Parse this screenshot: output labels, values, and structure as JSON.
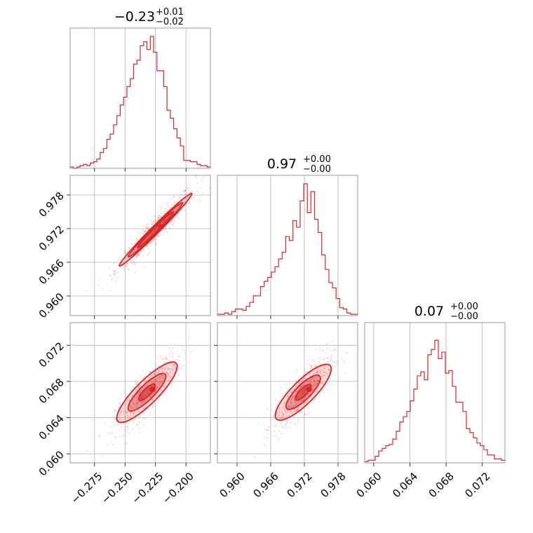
{
  "chart_data": {
    "type": "corner",
    "color": "#d62728",
    "grid": true,
    "parameters": [
      {
        "title_main": "−0.23",
        "title_sup": "+0.01",
        "title_sub": "−0.02",
        "range": [
          -0.295,
          -0.18
        ],
        "ticks": [
          -0.275,
          -0.25,
          -0.225,
          -0.2
        ],
        "tick_labels": [
          "−0.275",
          "−0.250",
          "−0.225",
          "−0.200"
        ]
      },
      {
        "title_main": "0.97",
        "title_sup": "+0.00",
        "title_sub": "−0.00",
        "range": [
          0.9565,
          0.9815
        ],
        "ticks": [
          0.96,
          0.966,
          0.972,
          0.978
        ],
        "tick_labels": [
          "0.960",
          "0.966",
          "0.972",
          "0.978"
        ]
      },
      {
        "title_main": "0.07",
        "title_sup": "+0.00",
        "title_sub": "−0.00",
        "range": [
          0.059,
          0.0745
        ],
        "ticks": [
          0.06,
          0.064,
          0.068,
          0.072
        ],
        "tick_labels": [
          "0.060",
          "0.064",
          "0.068",
          "0.072"
        ]
      }
    ],
    "histograms": [
      [
        0.01,
        0.0,
        0.01,
        0.02,
        0.03,
        0.02,
        0.04,
        0.05,
        0.07,
        0.12,
        0.15,
        0.22,
        0.26,
        0.33,
        0.4,
        0.48,
        0.54,
        0.62,
        0.68,
        0.79,
        0.82,
        0.93,
        0.96,
        0.9,
        1.0,
        0.88,
        0.74,
        0.74,
        0.62,
        0.44,
        0.38,
        0.3,
        0.23,
        0.17,
        0.06,
        0.06,
        0.05,
        0.05,
        0.03,
        0.02,
        0.02,
        0.01
      ],
      [
        0.01,
        0.01,
        0.02,
        0.01,
        0.03,
        0.05,
        0.05,
        0.04,
        0.07,
        0.1,
        0.15,
        0.15,
        0.22,
        0.26,
        0.29,
        0.33,
        0.37,
        0.43,
        0.48,
        0.6,
        0.57,
        0.72,
        0.67,
        0.87,
        1.0,
        0.78,
        0.94,
        0.73,
        0.63,
        0.46,
        0.35,
        0.25,
        0.21,
        0.13,
        0.06,
        0.05,
        0.02,
        0.01,
        0.01
      ],
      [
        0.01,
        0.02,
        0.02,
        0.05,
        0.09,
        0.11,
        0.13,
        0.14,
        0.18,
        0.24,
        0.31,
        0.35,
        0.39,
        0.47,
        0.56,
        0.66,
        0.69,
        0.63,
        0.82,
        0.86,
        0.93,
        0.79,
        0.84,
        0.68,
        0.7,
        0.58,
        0.46,
        0.46,
        0.39,
        0.26,
        0.23,
        0.19,
        0.15,
        0.13,
        0.1,
        0.06,
        0.06,
        0.03,
        0.03,
        0.02
      ]
    ],
    "pairs": [
      {
        "x_param": 0,
        "y_param": 1,
        "center": [
          -0.225,
          0.9718
        ],
        "levels": [
          {
            "width": 0.028,
            "height": 0.0015
          },
          {
            "width": 0.042,
            "height": 0.0022
          },
          {
            "width": 0.056,
            "height": 0.0028
          }
        ]
      },
      {
        "x_param": 0,
        "y_param": 2,
        "center": [
          -0.232,
          0.0668
        ],
        "levels": [
          {
            "width": 0.012,
            "height": 0.0009
          },
          {
            "width": 0.028,
            "height": 0.0018
          },
          {
            "width": 0.045,
            "height": 0.0028
          }
        ]
      },
      {
        "x_param": 1,
        "y_param": 2,
        "center": [
          0.9718,
          0.0668
        ],
        "levels": [
          {
            "width": 0.0025,
            "height": 0.0009
          },
          {
            "width": 0.0055,
            "height": 0.0018
          },
          {
            "width": 0.009,
            "height": 0.0028
          }
        ]
      }
    ]
  }
}
